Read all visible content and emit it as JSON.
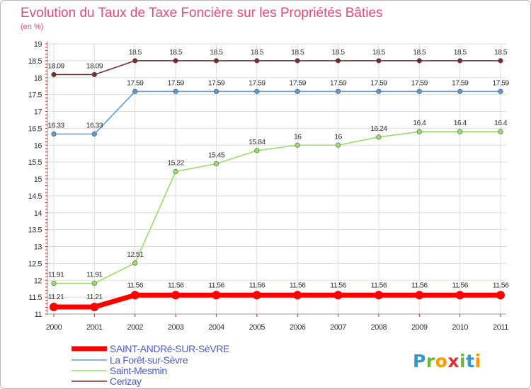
{
  "chart_data": {
    "type": "line",
    "title": "Evolution du Taux de Taxe Foncière sur les Propriétés Bâties",
    "subtitle": "(en %)",
    "x": [
      "2000",
      "2001",
      "2002",
      "2003",
      "2004",
      "2005",
      "2006",
      "2007",
      "2008",
      "2009",
      "2010",
      "2011"
    ],
    "ylim": [
      11,
      19
    ],
    "yticks": [
      "11",
      "11.5",
      "12",
      "12.5",
      "13",
      "13.5",
      "14",
      "14.5",
      "15",
      "15.5",
      "16",
      "16.5",
      "17",
      "17.5",
      "18",
      "18.5",
      "19"
    ],
    "grid": true,
    "series": [
      {
        "name": "SAINT-ANDRé-SUR-SèVRE",
        "color": "#ff0000",
        "values": [
          11.21,
          11.21,
          11.56,
          11.56,
          11.56,
          11.56,
          11.56,
          11.56,
          11.56,
          11.56,
          11.56,
          11.56
        ],
        "labels": [
          "11.21",
          "11.21",
          "11.56",
          "11.56",
          "11.56",
          "11.56",
          "11.56",
          "11.56",
          "11.56",
          "11.56",
          "11.56",
          "11.56"
        ]
      },
      {
        "name": "La Forêt-sur-Sèvre",
        "color": "#5b9bd5",
        "values": [
          16.33,
          16.33,
          17.59,
          17.59,
          17.59,
          17.59,
          17.59,
          17.59,
          17.59,
          17.59,
          17.59,
          17.59
        ],
        "labels": [
          "16.33",
          "16.33",
          "17.59",
          "17.59",
          "17.59",
          "17.59",
          "17.59",
          "17.59",
          "17.59",
          "17.59",
          "17.59",
          "17.59"
        ]
      },
      {
        "name": "Saint-Mesmin",
        "color": "#99dd66",
        "values": [
          11.91,
          11.91,
          12.51,
          15.22,
          15.45,
          15.84,
          16,
          16,
          16.24,
          16.4,
          16.4,
          16.4
        ],
        "labels": [
          "11.91",
          "11.91",
          "12.51",
          "15.22",
          "15.45",
          "15.84",
          "16",
          "16",
          "16.24",
          "16.4",
          "16.4",
          "16.4"
        ]
      },
      {
        "name": "Cerizay",
        "color": "#7a2b2b",
        "values": [
          18.09,
          18.09,
          18.5,
          18.5,
          18.5,
          18.5,
          18.5,
          18.5,
          18.5,
          18.5,
          18.5,
          18.5
        ],
        "labels": [
          "18.09",
          "18.09",
          "18.5",
          "18.5",
          "18.5",
          "18.5",
          "18.5",
          "18.5",
          "18.5",
          "18.5",
          "18.5",
          "18.5"
        ]
      }
    ],
    "legend": {
      "placement": "bottom-left",
      "text_color": "#4a5ad0"
    },
    "colors": {
      "title": "#e84a78",
      "grid": "#dddddd",
      "axis_ticks": "#e02020",
      "axis": "#999999"
    }
  },
  "logo": {
    "text": "Proxiti",
    "letter_colors": [
      "#3399cc",
      "#66bb33",
      "#ff9900",
      "#e03030",
      "#66bb33",
      "#3399cc",
      "#ff9900"
    ]
  }
}
